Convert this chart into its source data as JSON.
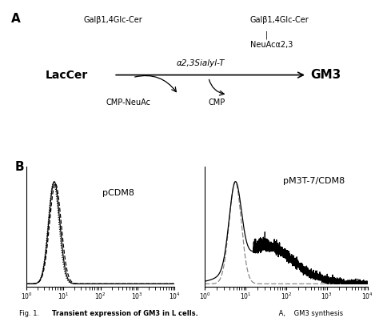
{
  "panel_a": {
    "laccer_label": "LacCer",
    "gm3_label": "GM3",
    "top_left_label": "Galβ1,4Glc-Cer",
    "top_right_label1": "Galβ1,4Glc-Cer",
    "top_right_label2": "NeuAcα2,3",
    "enzyme_label": "α2,3Sialyl-T",
    "cmp_neuac_label": "CMP-NeuAc",
    "cmp_label": "CMP"
  },
  "panel_b": {
    "left_label": "pCDM8",
    "right_label": "pM3T-7/CDM8"
  }
}
